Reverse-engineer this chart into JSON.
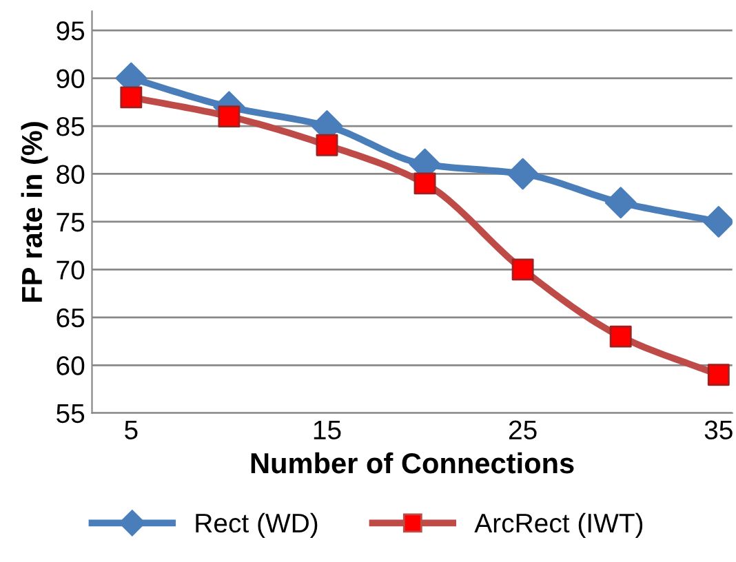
{
  "chart_data": {
    "type": "line",
    "xlabel": "Number of Connections",
    "ylabel": "FP rate in (%)",
    "x": [
      5,
      10,
      15,
      20,
      25,
      30,
      35
    ],
    "series": [
      {
        "name": "Rect (WD)",
        "color": "#4a7ebb",
        "marker": "diamond",
        "values": [
          90,
          87,
          85,
          81,
          80,
          77,
          75
        ]
      },
      {
        "name": "ArcRect (IWT)",
        "color": "#be4b48",
        "marker": "square",
        "values": [
          88,
          86,
          83,
          79,
          70,
          63,
          59
        ]
      }
    ],
    "xlim": [
      3,
      35.7
    ],
    "xticks": [
      5,
      15,
      25,
      35
    ],
    "ylim": [
      55,
      97
    ],
    "yticks": [
      55,
      60,
      65,
      70,
      75,
      80,
      85,
      90,
      95
    ],
    "grid": "y",
    "legend": "bottom",
    "line_style": "solid"
  }
}
